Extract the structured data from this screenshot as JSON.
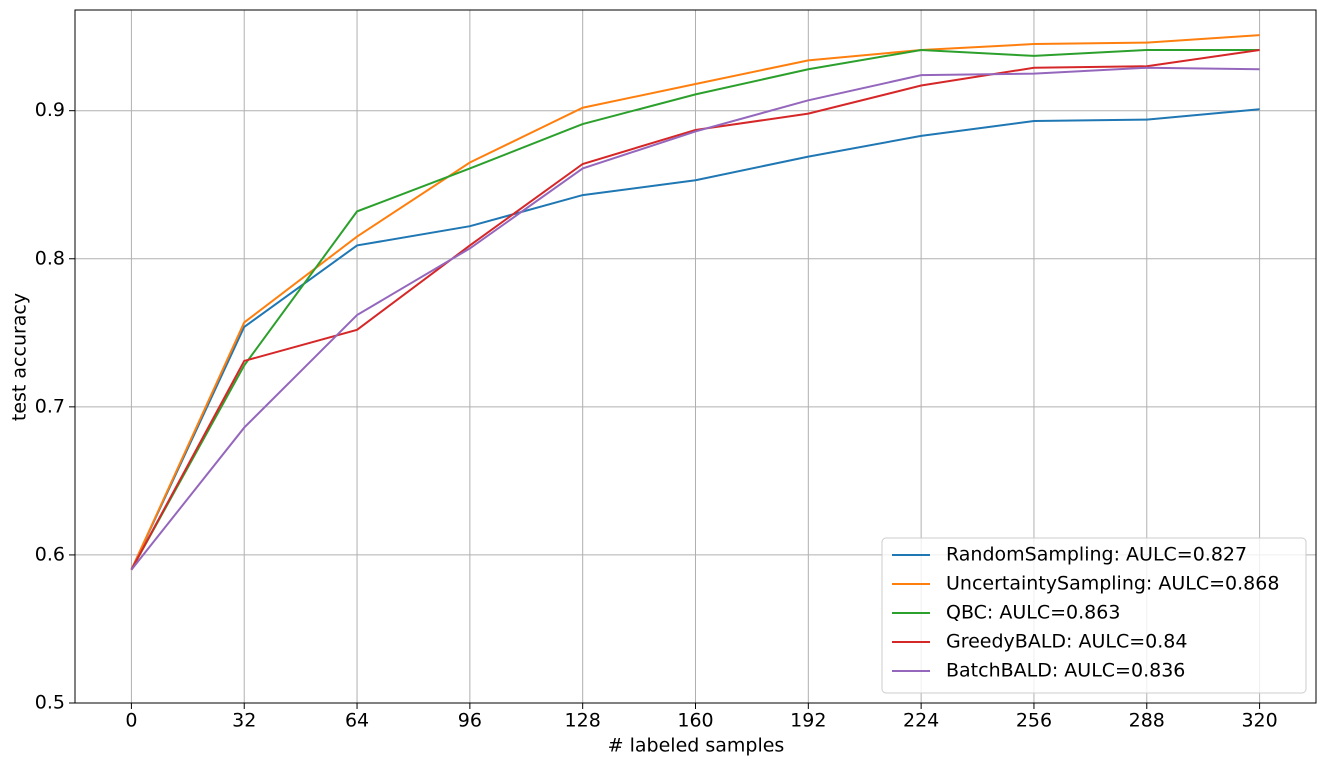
{
  "chart_data": {
    "type": "line",
    "x_label": "# labeled samples",
    "y_label": "test accuracy",
    "x": [
      0,
      32,
      64,
      96,
      128,
      160,
      192,
      224,
      256,
      288,
      320
    ],
    "series": [
      {
        "name": "RandomSampling: AULC=0.827",
        "color": "#1f77b4",
        "values": [
          0.59,
          0.754,
          0.809,
          0.822,
          0.843,
          0.853,
          0.869,
          0.883,
          0.893,
          0.894,
          0.901
        ]
      },
      {
        "name": "UncertaintySampling: AULC=0.868",
        "color": "#ff7f0e",
        "values": [
          0.59,
          0.757,
          0.815,
          0.865,
          0.902,
          0.918,
          0.934,
          0.941,
          0.945,
          0.946,
          0.951
        ]
      },
      {
        "name": "QBC: AULC=0.863",
        "color": "#2ca02c",
        "values": [
          0.59,
          0.728,
          0.832,
          0.861,
          0.891,
          0.911,
          0.928,
          0.941,
          0.937,
          0.941,
          0.941
        ]
      },
      {
        "name": "GreedyBALD: AULC=0.84",
        "color": "#d62728",
        "values": [
          0.59,
          0.731,
          0.752,
          0.809,
          0.864,
          0.887,
          0.898,
          0.917,
          0.929,
          0.93,
          0.941
        ]
      },
      {
        "name": "BatchBALD: AULC=0.836",
        "color": "#9467bd",
        "values": [
          0.59,
          0.686,
          0.762,
          0.807,
          0.861,
          0.886,
          0.907,
          0.924,
          0.925,
          0.929,
          0.928
        ]
      }
    ],
    "xlim": [
      -16,
      336
    ],
    "xticks": [
      0,
      32,
      64,
      96,
      128,
      160,
      192,
      224,
      256,
      288,
      320
    ],
    "ylim": [
      0.5,
      0.968
    ],
    "yticks": [
      0.5,
      0.6,
      0.7,
      0.8,
      0.9
    ],
    "grid": true,
    "legend": "lower right"
  }
}
